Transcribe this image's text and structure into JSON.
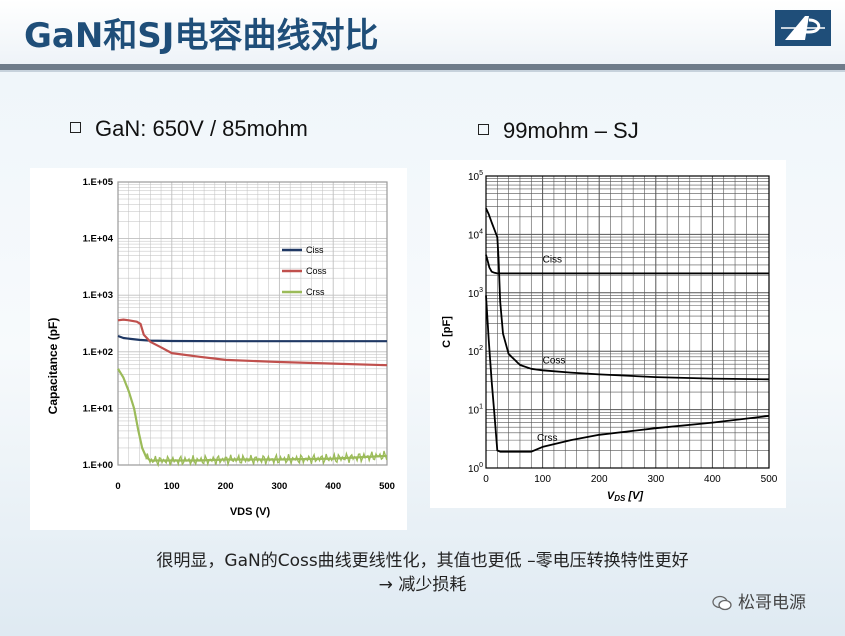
{
  "slide": {
    "title": "GaN和SJ电容曲线对比",
    "bullet_left": "GaN: 650V / 85mohm",
    "bullet_right": "99mohm – SJ",
    "caption_line1": "很明显，GaN的Coss曲线更线性化，其值也更低 –零电压转换特性更好",
    "caption_line2": "→ 减少损耗",
    "watermark": "松哥电源"
  },
  "chart_data": [
    {
      "type": "line",
      "title": "",
      "xlabel": "VDS (V)",
      "ylabel": "Capacitance (pF)",
      "xlim": [
        0,
        500
      ],
      "ylim": [
        1,
        100000
      ],
      "yscale": "log",
      "grid": true,
      "legend_position": "upper-right",
      "x_ticks": [
        "0",
        "100",
        "200",
        "300",
        "400",
        "500"
      ],
      "y_ticks": [
        "1.E+00",
        "1.E+01",
        "1.E+02",
        "1.E+03",
        "1.E+04",
        "1.E+05"
      ],
      "series": [
        {
          "name": "Ciss",
          "color": "#1f3864",
          "x": [
            0,
            10,
            25,
            40,
            60,
            100,
            200,
            300,
            400,
            500
          ],
          "y": [
            190,
            175,
            168,
            162,
            158,
            155,
            154,
            154,
            154,
            154
          ]
        },
        {
          "name": "Coss",
          "color": "#c0504d",
          "x": [
            0,
            10,
            20,
            35,
            42,
            48,
            60,
            80,
            100,
            150,
            200,
            300,
            400,
            500
          ],
          "y": [
            360,
            370,
            360,
            340,
            310,
            200,
            150,
            120,
            95,
            82,
            72,
            66,
            62,
            58
          ]
        },
        {
          "name": "Crss",
          "color": "#9bbb59",
          "x": [
            0,
            10,
            20,
            30,
            38,
            45,
            52,
            60,
            80,
            100,
            150,
            200,
            300,
            400,
            500
          ],
          "y": [
            50,
            35,
            20,
            10,
            4,
            2,
            1.4,
            1.2,
            1.2,
            1.2,
            1.2,
            1.25,
            1.25,
            1.3,
            1.45
          ]
        }
      ]
    },
    {
      "type": "line",
      "title": "",
      "xlabel": "VDS [V]",
      "ylabel": "C [pF]",
      "xlim": [
        0,
        500
      ],
      "ylim": [
        1,
        100000
      ],
      "yscale": "log",
      "grid": true,
      "x_ticks": [
        "0",
        "100",
        "200",
        "300",
        "400",
        "500"
      ],
      "y_ticks": [
        "10^0",
        "10^1",
        "10^2",
        "10^3",
        "10^4",
        "10^5"
      ],
      "series": [
        {
          "name": "Ciss",
          "color": "#000000",
          "x": [
            0,
            3,
            6,
            10,
            15,
            20,
            30,
            50,
            100,
            200,
            300,
            400,
            500
          ],
          "y": [
            4500,
            3500,
            2700,
            2300,
            2200,
            2150,
            2150,
            2150,
            2150,
            2150,
            2150,
            2150,
            2150
          ]
        },
        {
          "name": "Coss",
          "color": "#000000",
          "x": [
            0,
            5,
            10,
            15,
            20,
            22,
            25,
            30,
            40,
            60,
            80,
            100,
            150,
            200,
            300,
            400,
            500
          ],
          "y": [
            28000,
            22000,
            16000,
            12000,
            9000,
            4000,
            700,
            200,
            90,
            58,
            50,
            47,
            43,
            40,
            36,
            34,
            33
          ]
        },
        {
          "name": "Crss",
          "color": "#000000",
          "x": [
            0,
            5,
            10,
            15,
            20,
            25,
            30,
            50,
            80,
            100,
            150,
            200,
            300,
            400,
            500
          ],
          "y": [
            900,
            150,
            30,
            8,
            2,
            1.9,
            1.9,
            1.9,
            1.9,
            2.3,
            3,
            3.7,
            4.8,
            6,
            7.8
          ]
        }
      ]
    }
  ]
}
